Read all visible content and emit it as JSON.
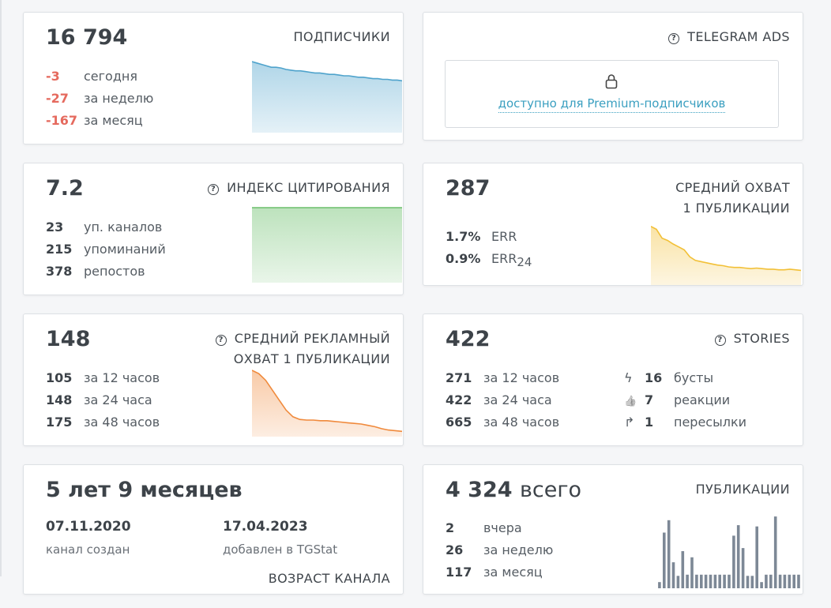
{
  "subscribers": {
    "value": "16 794",
    "title": "ПОДПИСЧИКИ",
    "stats": [
      {
        "value": "-3",
        "label": "сегодня"
      },
      {
        "value": "-27",
        "label": "за неделю"
      },
      {
        "value": "-167",
        "label": "за месяц"
      }
    ],
    "chart_color": "#4fa3cc"
  },
  "telegram_ads": {
    "title": "TELEGRAM ADS",
    "icon": "question-circle-icon",
    "lock_icon": "lock-icon",
    "premium_text": "доступно для Premium-подписчиков",
    "link_color": "#3a9fc0"
  },
  "citation": {
    "value": "7.2",
    "title": "ИНДЕКС ЦИТИРОВАНИЯ",
    "icon": "question-circle-icon",
    "stats": [
      {
        "value": "23",
        "label": "уп. каналов"
      },
      {
        "value": "215",
        "label": "упоминаний"
      },
      {
        "value": "378",
        "label": "репостов"
      }
    ],
    "chart_color": "#6cbf6c"
  },
  "reach": {
    "value": "287",
    "title_line1": "СРЕДНИЙ ОХВАТ",
    "title_line2": "1 ПУБЛИКАЦИИ",
    "stats": [
      {
        "value": "1.7%",
        "label": "ERR"
      },
      {
        "value": "0.9%",
        "label": "ERR",
        "sub": "24"
      }
    ],
    "chart_color": "#f2c037"
  },
  "ad_reach": {
    "value": "148",
    "title_line1": "СРЕДНИЙ РЕКЛАМНЫЙ",
    "title_line2": "ОХВАТ 1 ПУБЛИКАЦИИ",
    "icon": "question-circle-icon",
    "stats": [
      {
        "value": "105",
        "label": "за 12 часов"
      },
      {
        "value": "148",
        "label": "за 24 часа"
      },
      {
        "value": "175",
        "label": "за 48 часов"
      }
    ],
    "chart_color": "#f08a3c"
  },
  "stories": {
    "value": "422",
    "title": "STORIES",
    "icon": "question-circle-icon",
    "stats": [
      {
        "value": "271",
        "label": "за 12 часов"
      },
      {
        "value": "422",
        "label": "за 24 часа"
      },
      {
        "value": "665",
        "label": "за 48 часов"
      }
    ],
    "actions": [
      {
        "icon": "boost-icon",
        "glyph": "ϟ",
        "value": "16",
        "label": "бусты"
      },
      {
        "icon": "thumbs-up-icon",
        "glyph": "👍",
        "value": "7",
        "label": "реакции"
      },
      {
        "icon": "forward-icon",
        "glyph": "↱",
        "value": "1",
        "label": "пересылки"
      }
    ]
  },
  "channel_age": {
    "value": "5 лет 9 месяцев",
    "created_date": "07.11.2020",
    "created_label": "канал создан",
    "added_date": "17.04.2023",
    "added_label": "добавлен в TGStat",
    "title": "ВОЗРАСТ КАНАЛА"
  },
  "publications": {
    "value": "4 324",
    "suffix": "всего",
    "title": "ПУБЛИКАЦИИ",
    "stats": [
      {
        "value": "2",
        "label": "вчера"
      },
      {
        "value": "26",
        "label": "за неделю"
      },
      {
        "value": "117",
        "label": "за месяц"
      }
    ],
    "chart_color": "#7d8896"
  },
  "chart_data": [
    {
      "type": "area",
      "series": [
        {
          "values": [
            100,
            98,
            96,
            94,
            92,
            92,
            91,
            89,
            88,
            87,
            87,
            86,
            85,
            84,
            84,
            83,
            82,
            82,
            81,
            80,
            80,
            79,
            78,
            78,
            77,
            76,
            76,
            75,
            75,
            74,
            74,
            73
          ]
        }
      ]
    },
    {
      "type": "area",
      "series": [
        {
          "values": [
            100,
            100,
            100,
            100,
            100,
            100,
            100,
            100,
            100,
            100,
            100,
            100
          ]
        }
      ]
    },
    {
      "type": "area",
      "series": [
        {
          "values": [
            100,
            95,
            80,
            76,
            70,
            65,
            60,
            48,
            42,
            40,
            38,
            36,
            34,
            33,
            31,
            30,
            30,
            29,
            28,
            29,
            28,
            27,
            27,
            26,
            26,
            27,
            26,
            25
          ]
        }
      ]
    },
    {
      "type": "area",
      "series": [
        {
          "values": [
            100,
            95,
            85,
            70,
            55,
            40,
            30,
            26,
            25,
            25,
            24,
            24,
            23,
            22,
            21,
            20,
            19,
            17,
            15,
            12,
            10,
            9,
            8
          ]
        }
      ]
    },
    {
      "type": "bar",
      "series": [
        {
          "values": [
            10,
            90,
            110,
            42,
            20,
            60,
            22,
            50,
            22,
            22,
            22,
            22,
            22,
            22,
            22,
            22,
            85,
            102,
            65,
            20,
            20,
            100,
            10,
            22,
            22,
            116,
            22,
            22,
            22,
            22,
            22
          ]
        }
      ]
    }
  ]
}
